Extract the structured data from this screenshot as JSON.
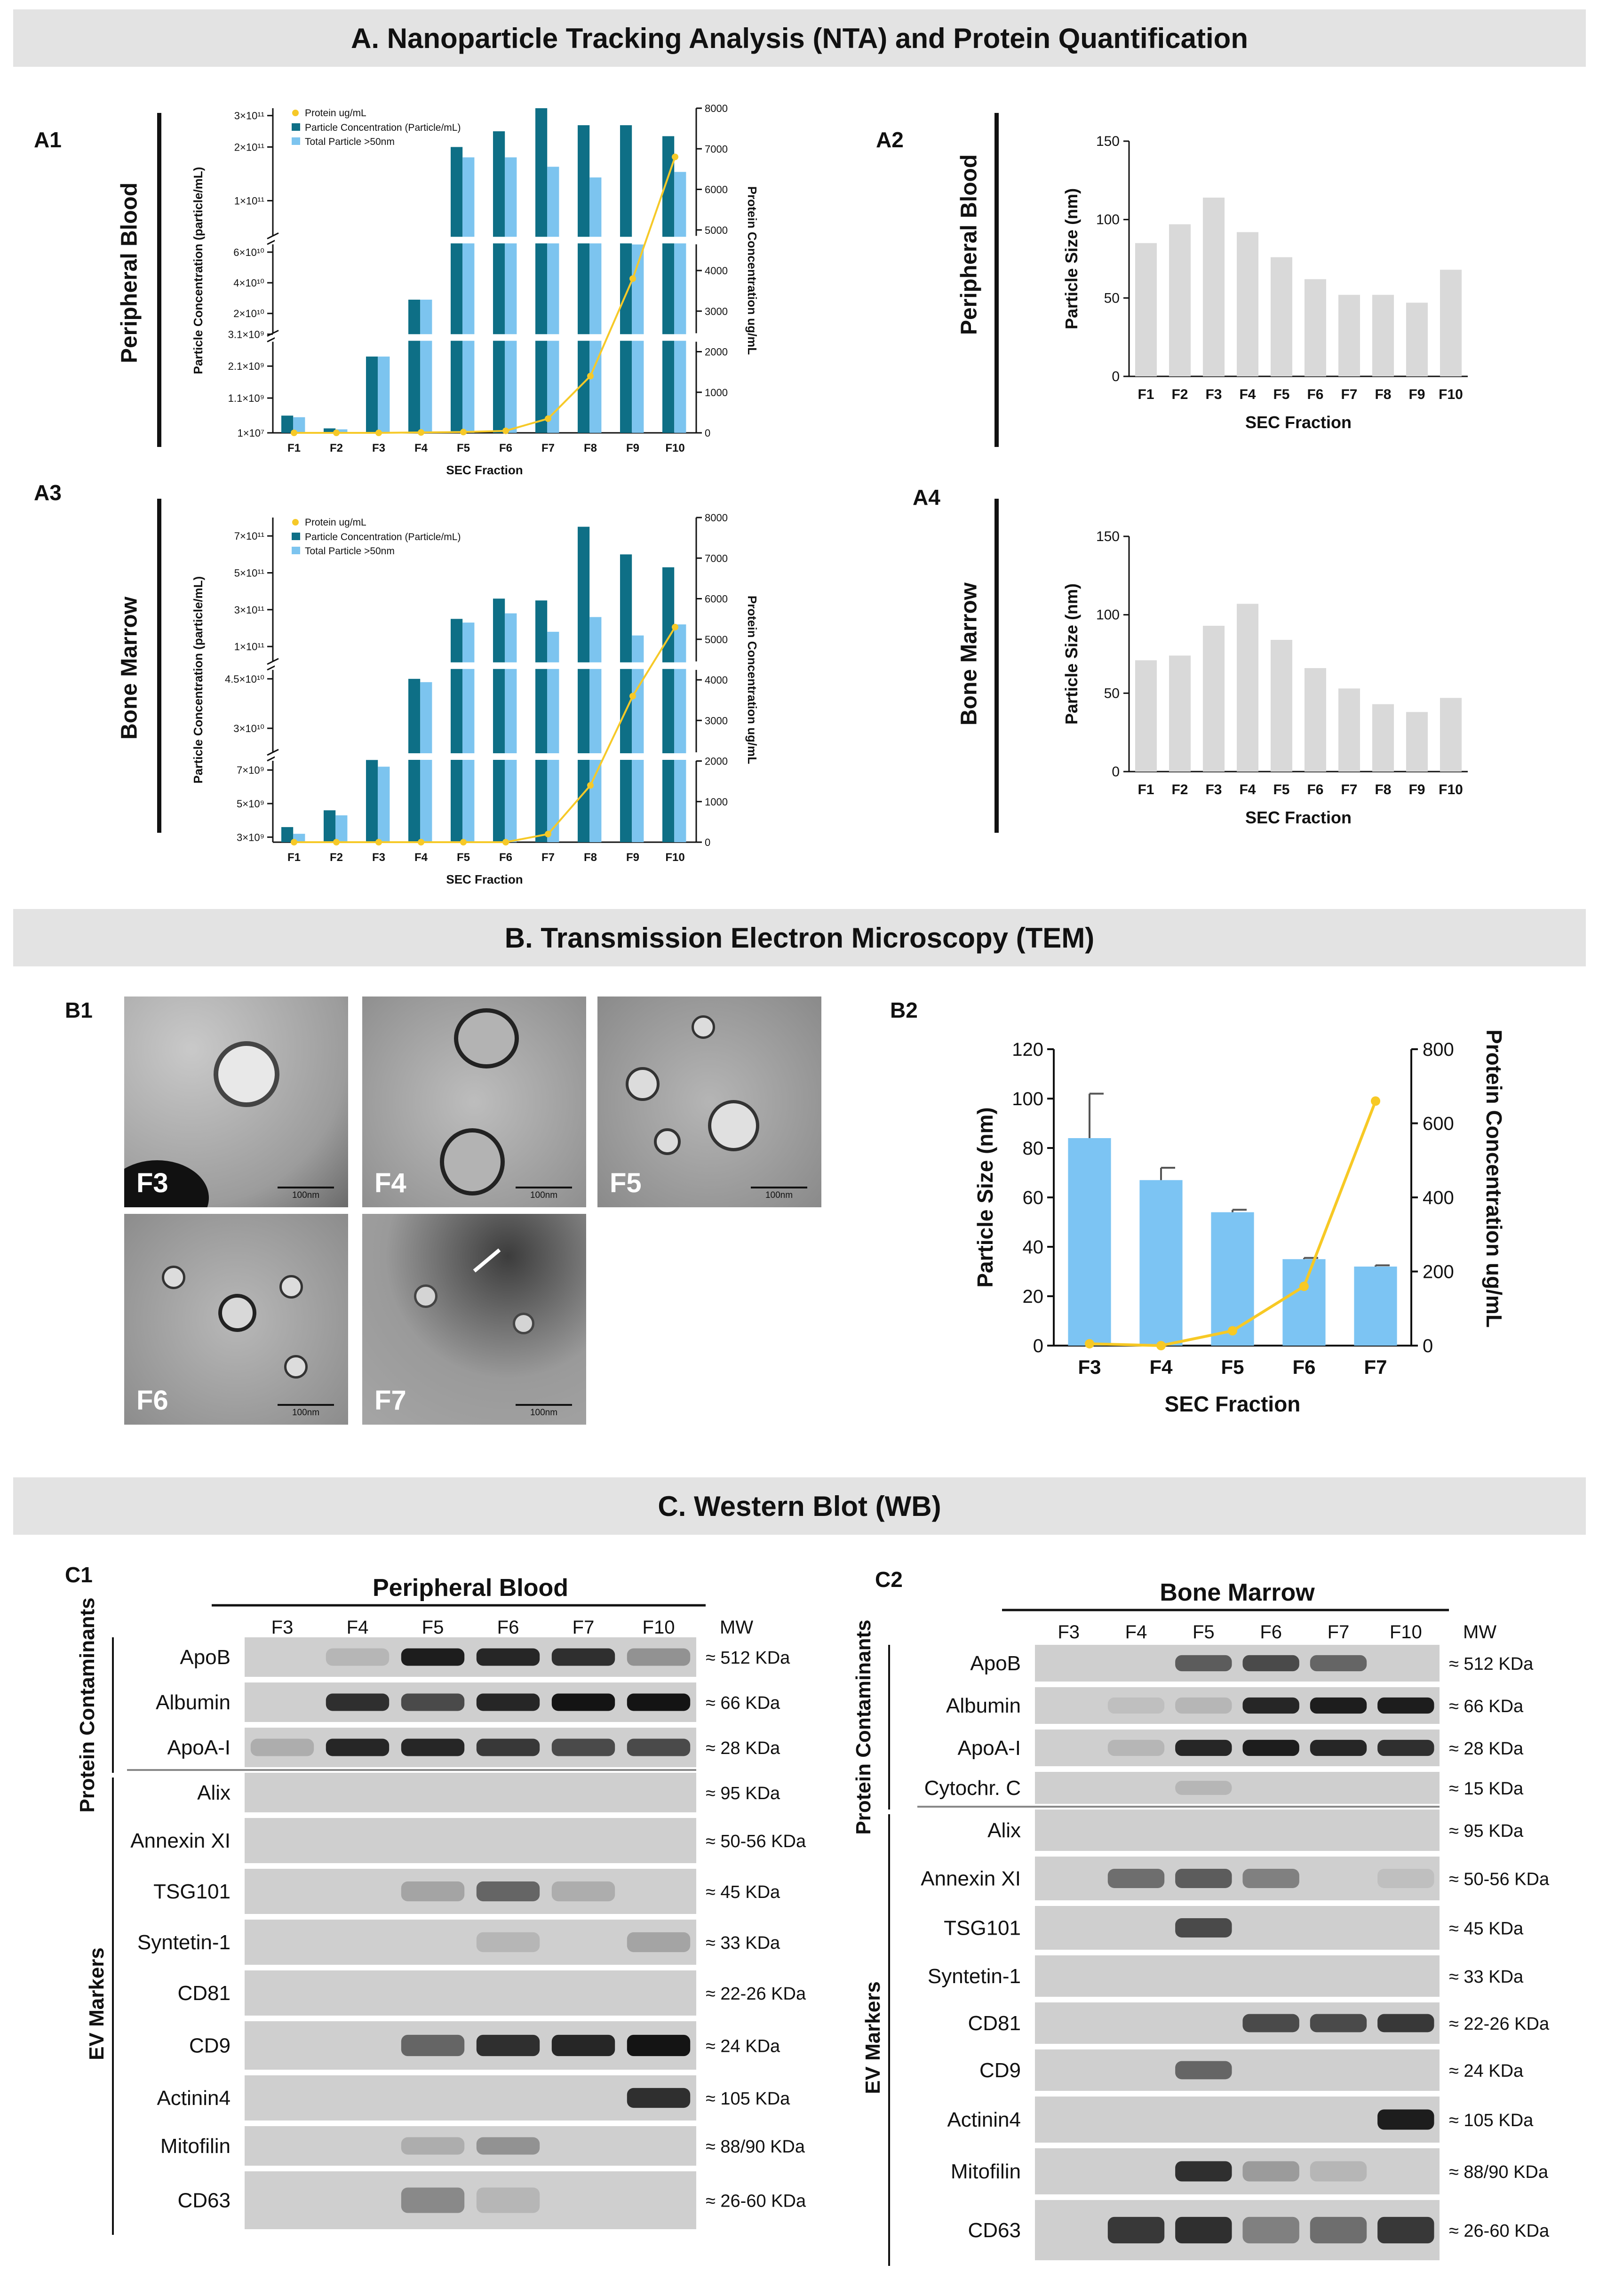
{
  "sections": {
    "A": "A. Nanoparticle Tracking Analysis (NTA) and Protein Quantification",
    "B": "B. Transmission Electron Microscopy (TEM)",
    "C": "C. Western Blot (WB)"
  },
  "panel_labels": [
    "A1",
    "A2",
    "A3",
    "A4",
    "B1",
    "B2",
    "C1",
    "C2"
  ],
  "row_labels": {
    "pb": "Peripheral Blood",
    "bm": "Bone Marrow"
  },
  "chart_data": [
    {
      "id": "A1",
      "type": "bar",
      "categories": [
        "F1",
        "F2",
        "F3",
        "F4",
        "F5",
        "F6",
        "F7",
        "F8",
        "F9",
        "F10"
      ],
      "series": [
        {
          "name": "Particle Concentration (Particle/mL)",
          "values": [
            "5.5×10^8",
            "1.5×10^8",
            "2.4×10^9",
            "2.9×10^10",
            "2.0×10^11",
            "2.45×10^11",
            "3.3×10^11",
            "2.65×10^11",
            "2.65×10^11",
            "2.3×10^11"
          ]
        },
        {
          "name": "Total Particle >50nm",
          "values": [
            "5×10^8",
            "1.2×10^8",
            "2.4×10^9",
            "2.9×10^10",
            "1.75×10^11",
            "1.75×10^11",
            "1.55×10^11",
            "1.35×10^11",
            "6.5×10^10",
            "1.45×10^11"
          ]
        },
        {
          "name": "Protein ug/mL",
          "axis": "right",
          "values": [
            0,
            0,
            0,
            10,
            20,
            50,
            350,
            1400,
            3800,
            6800
          ]
        }
      ],
      "y_tick_labels": [
        "1×10⁷",
        "1.1×10⁹",
        "2.1×10⁹",
        "3.1×10⁹",
        "2×10¹⁰",
        "4×10¹⁰",
        "6×10¹⁰",
        "1×10¹¹",
        "2×10¹¹",
        "3×10¹¹"
      ],
      "y2_ticks": [
        "0",
        "1000",
        "2000",
        "3000",
        "4000",
        "5000",
        "6000",
        "7000",
        "8000"
      ],
      "xlabel": "SEC Fraction",
      "ylabel": "Particle Concentration (particle/mL)",
      "y2label": "Protein Concentration ug/mL",
      "legend": [
        "Protein ug/mL",
        "Particle Concentration (Particle/mL)",
        "Total Particle >50nm"
      ]
    },
    {
      "id": "A2",
      "type": "bar",
      "categories": [
        "F1",
        "F2",
        "F3",
        "F4",
        "F5",
        "F6",
        "F7",
        "F8",
        "F9",
        "F10"
      ],
      "values": [
        85,
        97,
        114,
        92,
        76,
        62,
        52,
        52,
        47,
        68
      ],
      "xlabel": "SEC Fraction",
      "ylabel": "Particle Size (nm)",
      "ylim": [
        0,
        150
      ],
      "y_ticks": [
        "0",
        "50",
        "100",
        "150"
      ]
    },
    {
      "id": "A3",
      "type": "bar",
      "categories": [
        "F1",
        "F2",
        "F3",
        "F4",
        "F5",
        "F6",
        "F7",
        "F8",
        "F9",
        "F10"
      ],
      "series": [
        {
          "name": "Particle Concentration (Particle/mL)",
          "values": [
            "3.6×10^9",
            "4.6×10^9",
            "7.6×10^9",
            "4.5×10^10",
            "2.5×10^11",
            "3.6×10^11",
            "3.5×10^11",
            "7.5×10^11",
            "6.0×10^11",
            "5.3×10^11"
          ]
        },
        {
          "name": "Total Particle >50nm",
          "values": [
            "3.2×10^9",
            "4.3×10^9",
            "7.2×10^9",
            "4.4×10^10",
            "2.3×10^11",
            "2.8×10^11",
            "1.8×10^11",
            "2.6×10^11",
            "1.6×10^11",
            "2.2×10^11"
          ]
        },
        {
          "name": "Protein ug/mL",
          "axis": "right",
          "values": [
            0,
            0,
            0,
            0,
            0,
            0,
            200,
            1400,
            3600,
            5300
          ]
        }
      ],
      "y_tick_labels": [
        "3×10⁹",
        "5×10⁹",
        "7×10⁹",
        "3×10¹⁰",
        "4.5×10¹⁰",
        "1×10¹¹",
        "3×10¹¹",
        "5×10¹¹",
        "7×10¹¹"
      ],
      "y2_ticks": [
        "0",
        "1000",
        "2000",
        "3000",
        "4000",
        "5000",
        "6000",
        "7000",
        "8000"
      ],
      "xlabel": "SEC Fraction",
      "ylabel": "Particle Concentration (particle/mL)",
      "y2label": "Protein Concentration ug/mL",
      "legend": [
        "Protein ug/mL",
        "Particle Concentration (Particle/mL)",
        "Total Particle >50nm"
      ]
    },
    {
      "id": "A4",
      "type": "bar",
      "categories": [
        "F1",
        "F2",
        "F3",
        "F4",
        "F5",
        "F6",
        "F7",
        "F8",
        "F9",
        "F10"
      ],
      "values": [
        71,
        74,
        93,
        107,
        84,
        66,
        53,
        43,
        38,
        47
      ],
      "xlabel": "SEC Fraction",
      "ylabel": "Particle Size (nm)",
      "ylim": [
        0,
        150
      ],
      "y_ticks": [
        "0",
        "50",
        "100",
        "150"
      ]
    },
    {
      "id": "B2",
      "type": "bar",
      "categories": [
        "F3",
        "F4",
        "F5",
        "F6",
        "F7"
      ],
      "values": [
        84,
        67,
        54,
        35,
        32
      ],
      "errors": [
        18,
        5,
        1,
        0.5,
        0.5
      ],
      "line": [
        5,
        0,
        40,
        160,
        660
      ],
      "xlabel": "SEC Fraction",
      "ylabel": "Particle Size (nm)",
      "y2label": "Protein Concentration ug/mL",
      "ylim": [
        0,
        120
      ],
      "y2lim": [
        0,
        800
      ],
      "y_ticks": [
        "0",
        "20",
        "40",
        "60",
        "80",
        "100",
        "120"
      ],
      "y2_ticks": [
        "0",
        "200",
        "400",
        "600",
        "800"
      ]
    }
  ],
  "tem": {
    "labels": [
      "F3",
      "F4",
      "F5",
      "F6",
      "F7"
    ],
    "scale": "100nm"
  },
  "wb": {
    "c1": {
      "title": "Peripheral Blood",
      "lanes": [
        "F3",
        "F4",
        "F5",
        "F6",
        "F7",
        "F10"
      ],
      "mw_header": "MW",
      "group1": "Protein Contaminants",
      "group2": "EV Markers",
      "rows": [
        {
          "name": "ApoB",
          "mw": "≈ 512 KDa",
          "b": [
            0,
            0.1,
            0.95,
            0.9,
            0.85,
            0.3
          ]
        },
        {
          "name": "Albumin",
          "mw": "≈ 66 KDa",
          "b": [
            0,
            0.85,
            0.7,
            0.9,
            1,
            1
          ]
        },
        {
          "name": "ApoA-I",
          "mw": "≈ 28 KDa",
          "b": [
            0.15,
            0.9,
            0.9,
            0.8,
            0.7,
            0.7
          ]
        },
        {
          "name": "Alix",
          "mw": "≈ 95 KDa",
          "b": [
            0,
            0,
            0,
            0,
            0,
            0
          ]
        },
        {
          "name": "Annexin XI",
          "mw": "≈ 50-56 KDa",
          "b": [
            0,
            0,
            0,
            0,
            0,
            0
          ]
        },
        {
          "name": "TSG101",
          "mw": "≈ 45 KDa",
          "b": [
            0,
            0,
            0.2,
            0.55,
            0.15,
            0
          ]
        },
        {
          "name": "Syntetin-1",
          "mw": "≈ 33 KDa",
          "b": [
            0,
            0,
            0,
            0.1,
            0,
            0.2
          ]
        },
        {
          "name": "CD81",
          "mw": "≈ 22-26 KDa",
          "b": [
            0,
            0,
            0,
            0,
            0,
            0
          ]
        },
        {
          "name": "CD9",
          "mw": "≈ 24 KDa",
          "b": [
            0,
            0,
            0.55,
            0.85,
            0.9,
            1
          ]
        },
        {
          "name": "Actinin4",
          "mw": "≈ 105 KDa",
          "b": [
            0,
            0,
            0,
            0,
            0,
            0.85
          ]
        },
        {
          "name": "Mitofilin",
          "mw": "≈ 88/90 KDa",
          "b": [
            0,
            0,
            0.15,
            0.3,
            0,
            0
          ]
        },
        {
          "name": "CD63",
          "mw": "≈ 26-60 KDa",
          "b": [
            0,
            0,
            0.35,
            0.1,
            0,
            0
          ]
        }
      ]
    },
    "c2": {
      "title": "Bone Marrow",
      "lanes": [
        "F3",
        "F4",
        "F5",
        "F6",
        "F7",
        "F10"
      ],
      "mw_header": "MW",
      "group1": "Protein Contaminants",
      "group2": "EV Markers",
      "rows": [
        {
          "name": "ApoB",
          "mw": "≈ 512 KDa",
          "b": [
            0,
            0,
            0.6,
            0.7,
            0.55,
            0
          ]
        },
        {
          "name": "Albumin",
          "mw": "≈ 66 KDa",
          "b": [
            0,
            0.05,
            0.1,
            0.9,
            0.95,
            0.95
          ]
        },
        {
          "name": "ApoA-I",
          "mw": "≈ 28 KDa",
          "b": [
            0,
            0.1,
            0.9,
            0.95,
            0.9,
            0.85
          ]
        },
        {
          "name": "Cytochr. C",
          "mw": "≈ 15 KDa",
          "b": [
            0,
            0,
            0.1,
            0,
            0,
            0
          ]
        },
        {
          "name": "Alix",
          "mw": "≈ 95 KDa",
          "b": [
            0,
            0,
            0,
            0,
            0,
            0
          ]
        },
        {
          "name": "Annexin XI",
          "mw": "≈ 50-56 KDa",
          "b": [
            0,
            0.5,
            0.6,
            0.4,
            0,
            0.05
          ]
        },
        {
          "name": "TSG101",
          "mw": "≈ 45 KDa",
          "b": [
            0,
            0,
            0.7,
            0,
            0,
            0
          ]
        },
        {
          "name": "Syntetin-1",
          "mw": "≈ 33 KDa",
          "b": [
            0,
            0,
            0,
            0,
            0,
            0
          ]
        },
        {
          "name": "CD81",
          "mw": "≈ 22-26 KDa",
          "b": [
            0,
            0,
            0,
            0.7,
            0.7,
            0.8
          ]
        },
        {
          "name": "CD9",
          "mw": "≈ 24 KDa",
          "b": [
            0,
            0,
            0.55,
            0,
            0,
            0
          ]
        },
        {
          "name": "Actinin4",
          "mw": "≈ 105 KDa",
          "b": [
            0,
            0,
            0,
            0,
            0,
            0.95
          ]
        },
        {
          "name": "Mitofilin",
          "mw": "≈ 88/90 KDa",
          "b": [
            0,
            0,
            0.85,
            0.25,
            0.1,
            0
          ]
        },
        {
          "name": "CD63",
          "mw": "≈ 26-60 KDa",
          "b": [
            0,
            0.8,
            0.85,
            0.4,
            0.5,
            0.8
          ]
        }
      ]
    }
  }
}
